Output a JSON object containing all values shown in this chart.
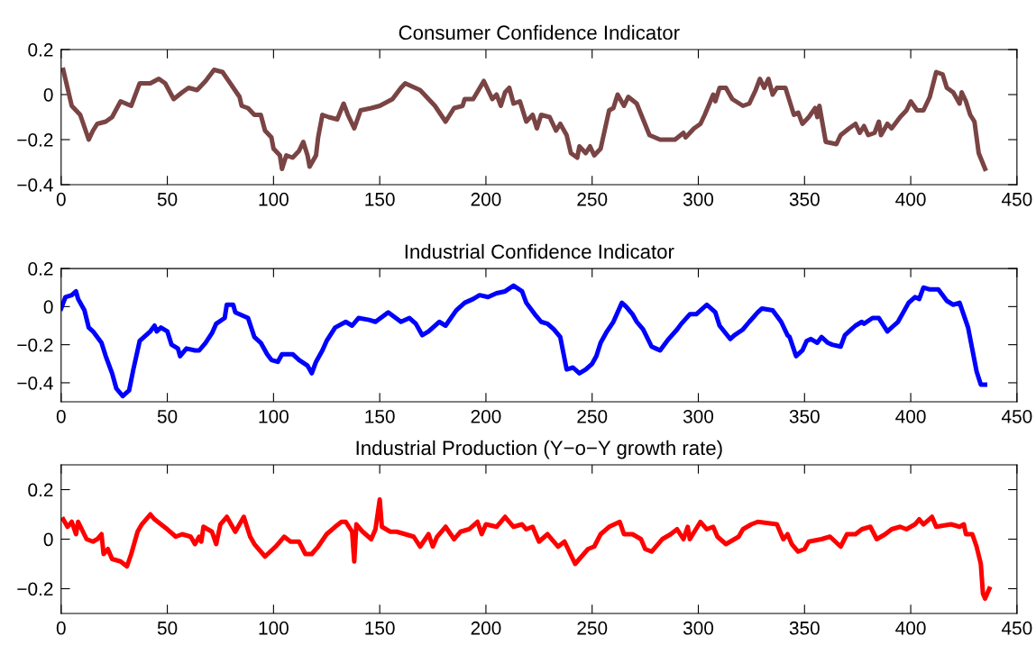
{
  "chart_data": [
    {
      "type": "line",
      "title": "Consumer Confidence Indicator",
      "xlim": [
        0,
        450
      ],
      "xticks": [
        0,
        50,
        100,
        150,
        200,
        250,
        300,
        350,
        400,
        450
      ],
      "ylim": [
        -0.4,
        0.2
      ],
      "yticks": [
        -0.4,
        -0.2,
        0,
        0.2
      ],
      "series": [
        {
          "color": "#7a4444",
          "x": [
            1,
            5,
            9,
            13,
            15,
            17,
            21,
            24,
            28,
            33,
            37,
            42,
            46,
            49,
            53,
            57,
            60,
            64,
            68,
            72,
            76,
            84,
            85,
            88,
            91,
            94,
            96,
            99,
            100,
            103,
            104,
            106,
            109,
            112,
            114,
            116,
            117,
            120,
            121,
            123,
            126,
            130,
            133,
            135,
            138,
            141,
            146,
            150,
            156,
            160,
            162,
            169,
            176,
            181,
            185,
            189,
            190,
            194,
            199,
            203,
            205,
            207,
            209,
            211,
            213,
            216,
            219,
            222,
            224,
            226,
            230,
            233,
            235,
            238,
            240,
            243,
            244,
            247,
            249,
            251,
            254,
            258,
            260,
            262,
            265,
            267,
            271,
            274,
            277,
            282,
            289,
            293,
            294,
            298,
            301,
            303,
            307,
            308,
            310,
            313,
            316,
            321,
            324,
            327,
            329,
            331,
            333,
            335,
            337,
            341,
            345,
            347,
            349,
            352,
            355,
            356,
            357,
            360,
            365,
            367,
            371,
            374,
            376,
            378,
            380,
            383,
            385,
            386,
            389,
            391,
            395,
            398,
            400,
            403,
            406,
            409,
            412,
            415,
            417,
            420,
            423,
            424,
            426,
            428,
            430,
            432,
            435
          ],
          "values": [
            0.11,
            -0.05,
            -0.09,
            -0.2,
            -0.16,
            -0.13,
            -0.12,
            -0.1,
            -0.03,
            -0.05,
            0.05,
            0.05,
            0.07,
            0.05,
            -0.02,
            0.01,
            0.03,
            0.02,
            0.06,
            0.11,
            0.1,
            -0.01,
            -0.05,
            -0.06,
            -0.09,
            -0.09,
            -0.16,
            -0.19,
            -0.24,
            -0.27,
            -0.33,
            -0.27,
            -0.28,
            -0.25,
            -0.21,
            -0.27,
            -0.32,
            -0.27,
            -0.19,
            -0.09,
            -0.1,
            -0.11,
            -0.04,
            -0.09,
            -0.15,
            -0.07,
            -0.06,
            -0.05,
            -0.02,
            0.03,
            0.05,
            0.02,
            -0.05,
            -0.12,
            -0.06,
            -0.05,
            -0.02,
            -0.02,
            0.06,
            -0.02,
            0.0,
            -0.05,
            0.01,
            0.03,
            -0.04,
            -0.03,
            -0.12,
            -0.09,
            -0.15,
            -0.09,
            -0.1,
            -0.16,
            -0.13,
            -0.18,
            -0.26,
            -0.28,
            -0.23,
            -0.26,
            -0.23,
            -0.27,
            -0.24,
            -0.07,
            -0.06,
            0.0,
            -0.05,
            -0.01,
            -0.04,
            -0.11,
            -0.18,
            -0.2,
            -0.2,
            -0.17,
            -0.19,
            -0.15,
            -0.13,
            -0.09,
            0.0,
            -0.03,
            0.03,
            0.03,
            -0.02,
            -0.05,
            -0.04,
            0.02,
            0.07,
            0.03,
            0.07,
            0.0,
            0.03,
            0.03,
            -0.09,
            -0.08,
            -0.13,
            -0.1,
            -0.06,
            -0.1,
            -0.05,
            -0.21,
            -0.22,
            -0.18,
            -0.15,
            -0.13,
            -0.17,
            -0.14,
            -0.18,
            -0.17,
            -0.12,
            -0.18,
            -0.13,
            -0.15,
            -0.1,
            -0.07,
            -0.03,
            -0.07,
            -0.07,
            -0.01,
            0.1,
            0.09,
            0.03,
            0.01,
            -0.04,
            0.01,
            -0.03,
            -0.09,
            -0.12,
            -0.26,
            -0.33
          ]
        }
      ]
    },
    {
      "type": "line",
      "title": "Industrial Confidence Indicator",
      "xlim": [
        0,
        450
      ],
      "xticks": [
        0,
        50,
        100,
        150,
        200,
        250,
        300,
        350,
        400,
        450
      ],
      "ylim": [
        -0.5,
        0.2
      ],
      "yticks": [
        -0.4,
        -0.2,
        0,
        0.2
      ],
      "series": [
        {
          "color": "#0000ff",
          "x": [
            0,
            2,
            5,
            7,
            8,
            11,
            13,
            15,
            19,
            21,
            24,
            26,
            29,
            32,
            34,
            37,
            42,
            44,
            45,
            47,
            50,
            52,
            55,
            56,
            59,
            63,
            65,
            68,
            71,
            73,
            77,
            78,
            81,
            82,
            88,
            91,
            94,
            97,
            99,
            102,
            104,
            109,
            112,
            116,
            118,
            120,
            123,
            125,
            129,
            134,
            137,
            140,
            145,
            148,
            154,
            160,
            164,
            167,
            170,
            173,
            178,
            181,
            186,
            190,
            194,
            197,
            201,
            205,
            209,
            213,
            217,
            219,
            223,
            226,
            229,
            232,
            235,
            238,
            241,
            244,
            247,
            250,
            252,
            254,
            257,
            260,
            264,
            266,
            269,
            271,
            274,
            278,
            280,
            282,
            286,
            290,
            292,
            296,
            299,
            304,
            308,
            310,
            315,
            317,
            321,
            324,
            328,
            330,
            335,
            339,
            342,
            343,
            346,
            349,
            351,
            353,
            356,
            358,
            361,
            363,
            367,
            369,
            372,
            374,
            377,
            378,
            382,
            385,
            389,
            392,
            394,
            399,
            402,
            404,
            406,
            409,
            413,
            417,
            420,
            423,
            427,
            431,
            433,
            435
          ],
          "values": [
            -0.01,
            0.05,
            0.06,
            0.08,
            0.04,
            -0.02,
            -0.11,
            -0.13,
            -0.19,
            -0.26,
            -0.35,
            -0.43,
            -0.47,
            -0.44,
            -0.33,
            -0.18,
            -0.13,
            -0.1,
            -0.13,
            -0.11,
            -0.13,
            -0.2,
            -0.22,
            -0.26,
            -0.22,
            -0.23,
            -0.23,
            -0.19,
            -0.14,
            -0.09,
            -0.06,
            0.01,
            0.01,
            -0.03,
            -0.06,
            -0.16,
            -0.19,
            -0.25,
            -0.28,
            -0.29,
            -0.25,
            -0.25,
            -0.28,
            -0.31,
            -0.35,
            -0.29,
            -0.23,
            -0.18,
            -0.11,
            -0.08,
            -0.1,
            -0.06,
            -0.07,
            -0.08,
            -0.03,
            -0.08,
            -0.06,
            -0.09,
            -0.15,
            -0.13,
            -0.08,
            -0.1,
            -0.02,
            0.02,
            0.04,
            0.06,
            0.05,
            0.07,
            0.08,
            0.11,
            0.08,
            0.02,
            -0.04,
            -0.08,
            -0.09,
            -0.12,
            -0.16,
            -0.33,
            -0.32,
            -0.35,
            -0.33,
            -0.3,
            -0.26,
            -0.19,
            -0.13,
            -0.08,
            0.02,
            0.0,
            -0.04,
            -0.08,
            -0.12,
            -0.21,
            -0.22,
            -0.23,
            -0.17,
            -0.12,
            -0.09,
            -0.04,
            -0.04,
            0.01,
            -0.03,
            -0.1,
            -0.17,
            -0.15,
            -0.12,
            -0.08,
            -0.03,
            -0.01,
            -0.02,
            -0.08,
            -0.15,
            -0.16,
            -0.26,
            -0.23,
            -0.18,
            -0.17,
            -0.19,
            -0.16,
            -0.19,
            -0.2,
            -0.21,
            -0.15,
            -0.12,
            -0.1,
            -0.08,
            -0.09,
            -0.06,
            -0.06,
            -0.13,
            -0.1,
            -0.08,
            0.02,
            0.05,
            0.04,
            0.1,
            0.09,
            0.09,
            0.03,
            0.01,
            0.02,
            -0.11,
            -0.34,
            -0.41,
            -0.41
          ]
        }
      ]
    },
    {
      "type": "line",
      "title": "Industrial Production (Y−o−Y growth rate)",
      "xlim": [
        0,
        450
      ],
      "xticks": [
        0,
        50,
        100,
        150,
        200,
        250,
        300,
        350,
        400,
        450
      ],
      "ylim": [
        -0.3,
        0.3
      ],
      "yticks": [
        -0.2,
        0,
        0.2
      ],
      "series": [
        {
          "color": "#ff0000",
          "x": [
            1,
            3,
            5,
            7,
            8,
            12,
            15,
            17,
            19,
            20,
            22,
            24,
            28,
            31,
            33,
            36,
            38,
            42,
            44,
            47,
            50,
            54,
            57,
            61,
            63,
            65,
            66,
            67,
            71,
            73,
            75,
            78,
            80,
            82,
            86,
            89,
            91,
            96,
            101,
            105,
            108,
            112,
            115,
            118,
            121,
            125,
            129,
            132,
            134,
            137,
            138,
            139,
            142,
            146,
            148,
            150,
            151,
            155,
            158,
            162,
            166,
            169,
            173,
            175,
            177,
            181,
            185,
            188,
            192,
            196,
            198,
            200,
            205,
            209,
            213,
            217,
            219,
            222,
            225,
            229,
            231,
            234,
            237,
            242,
            244,
            248,
            251,
            254,
            258,
            263,
            265,
            269,
            273,
            275,
            278,
            283,
            287,
            290,
            293,
            295,
            296,
            301,
            304,
            307,
            309,
            313,
            319,
            321,
            325,
            328,
            337,
            340,
            342,
            344,
            347,
            350,
            352,
            358,
            362,
            367,
            370,
            374,
            377,
            381,
            384,
            388,
            391,
            395,
            398,
            402,
            404,
            406,
            410,
            412,
            419,
            423,
            425,
            426,
            429,
            431,
            433,
            434,
            435,
            437
          ],
          "values": [
            0.08,
            0.05,
            0.07,
            0.02,
            0.07,
            0.0,
            -0.01,
            0.0,
            0.02,
            -0.06,
            -0.04,
            -0.08,
            -0.09,
            -0.11,
            -0.06,
            0.03,
            0.06,
            0.1,
            0.08,
            0.06,
            0.04,
            0.01,
            0.02,
            0.01,
            -0.02,
            0.01,
            -0.01,
            0.05,
            0.03,
            -0.02,
            0.06,
            0.09,
            0.06,
            0.03,
            0.09,
            0.01,
            -0.02,
            -0.07,
            -0.03,
            0.01,
            -0.01,
            -0.01,
            -0.06,
            -0.06,
            -0.03,
            0.02,
            0.05,
            0.07,
            0.07,
            0.03,
            -0.09,
            0.06,
            0.03,
            0.0,
            0.04,
            0.16,
            0.05,
            0.03,
            0.03,
            0.02,
            0.01,
            -0.03,
            0.02,
            -0.03,
            0.01,
            0.05,
            0.0,
            0.03,
            0.04,
            0.07,
            0.02,
            0.06,
            0.05,
            0.09,
            0.05,
            0.06,
            0.04,
            0.05,
            -0.01,
            0.02,
            0.0,
            -0.03,
            -0.01,
            -0.1,
            -0.08,
            -0.04,
            -0.03,
            0.02,
            0.05,
            0.07,
            0.02,
            0.02,
            0.0,
            -0.04,
            -0.05,
            0.0,
            0.02,
            0.04,
            0.0,
            0.05,
            0.0,
            0.07,
            0.04,
            0.05,
            0.01,
            -0.02,
            0.01,
            0.04,
            0.06,
            0.07,
            0.06,
            0.0,
            0.02,
            -0.02,
            -0.05,
            -0.04,
            -0.01,
            0.0,
            0.01,
            -0.03,
            0.02,
            0.02,
            0.04,
            0.05,
            0.0,
            0.02,
            0.04,
            0.05,
            0.04,
            0.06,
            0.08,
            0.06,
            0.09,
            0.05,
            0.06,
            0.05,
            0.06,
            0.02,
            0.02,
            -0.03,
            -0.1,
            -0.22,
            -0.24,
            -0.2
          ]
        }
      ]
    }
  ]
}
